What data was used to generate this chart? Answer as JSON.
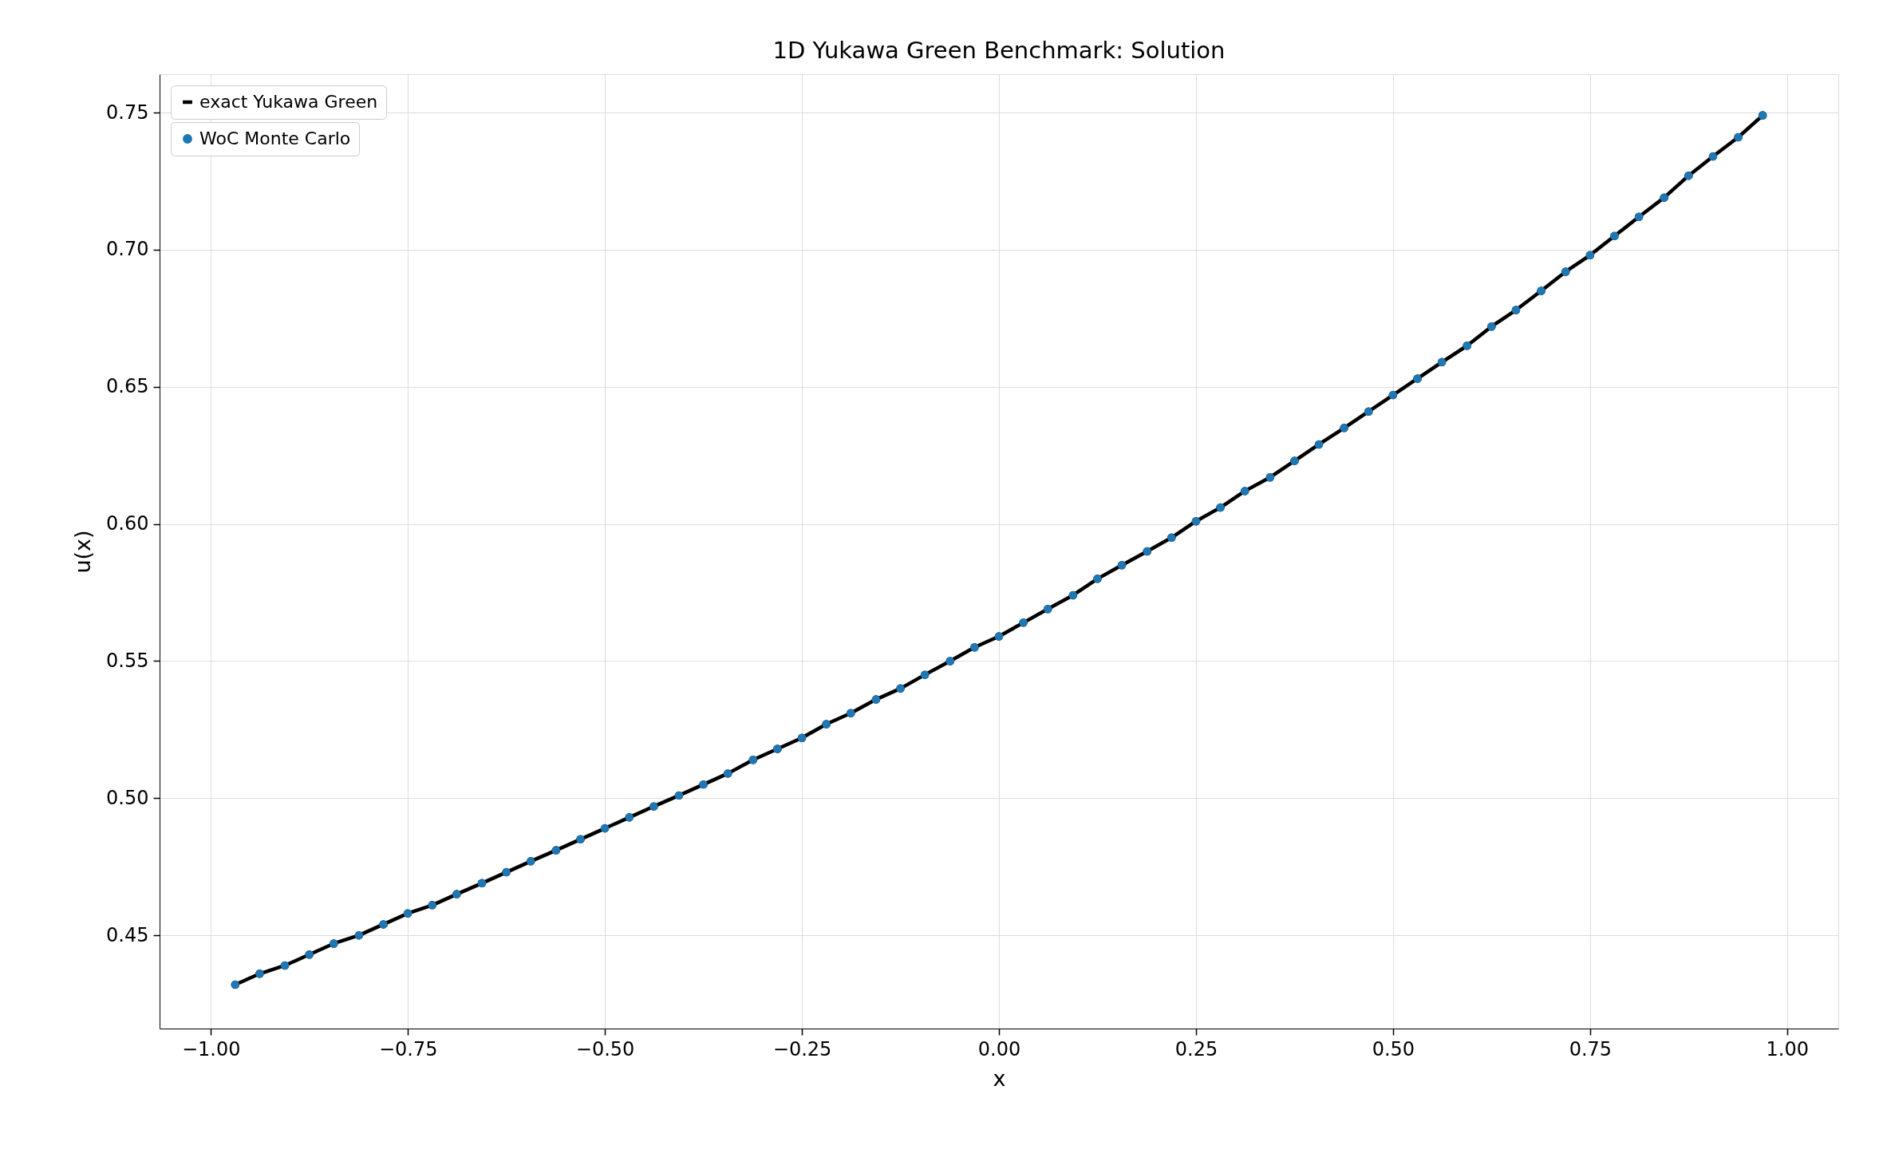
{
  "chart_data": {
    "type": "line",
    "title": "1D Yukawa Green Benchmark: Solution",
    "xlabel": "x",
    "ylabel": "u(x)",
    "x": [
      -0.969,
      -0.938,
      -0.906,
      -0.875,
      -0.844,
      -0.812,
      -0.781,
      -0.75,
      -0.719,
      -0.688,
      -0.656,
      -0.625,
      -0.594,
      -0.562,
      -0.531,
      -0.5,
      -0.469,
      -0.438,
      -0.406,
      -0.375,
      -0.344,
      -0.312,
      -0.281,
      -0.25,
      -0.219,
      -0.188,
      -0.156,
      -0.125,
      -0.094,
      -0.062,
      -0.031,
      0,
      0.031,
      0.062,
      0.094,
      0.125,
      0.156,
      0.188,
      0.219,
      0.25,
      0.281,
      0.312,
      0.344,
      0.375,
      0.406,
      0.438,
      0.469,
      0.5,
      0.531,
      0.562,
      0.594,
      0.625,
      0.656,
      0.688,
      0.719,
      0.75,
      0.781,
      0.812,
      0.844,
      0.875,
      0.906,
      0.938,
      0.969
    ],
    "series": [
      {
        "name": "exact Yukawa Green",
        "color": "#000000",
        "values": [
          0.432,
          0.436,
          0.439,
          0.443,
          0.447,
          0.45,
          0.454,
          0.458,
          0.461,
          0.465,
          0.469,
          0.473,
          0.477,
          0.481,
          0.485,
          0.489,
          0.493,
          0.497,
          0.501,
          0.505,
          0.509,
          0.514,
          0.518,
          0.522,
          0.527,
          0.531,
          0.536,
          0.54,
          0.545,
          0.55,
          0.555,
          0.559,
          0.564,
          0.569,
          0.574,
          0.58,
          0.585,
          0.59,
          0.595,
          0.601,
          0.606,
          0.612,
          0.617,
          0.623,
          0.629,
          0.635,
          0.641,
          0.647,
          0.653,
          0.659,
          0.665,
          0.672,
          0.678,
          0.685,
          0.692,
          0.698,
          0.705,
          0.712,
          0.719,
          0.727,
          0.734,
          0.741,
          0.749
        ]
      },
      {
        "name": "WoC Monte Carlo",
        "type": "scatter",
        "color": "#1f77b4",
        "values": [
          0.432,
          0.436,
          0.439,
          0.443,
          0.447,
          0.45,
          0.454,
          0.458,
          0.461,
          0.465,
          0.469,
          0.473,
          0.477,
          0.481,
          0.485,
          0.489,
          0.493,
          0.497,
          0.501,
          0.505,
          0.509,
          0.514,
          0.518,
          0.522,
          0.527,
          0.531,
          0.536,
          0.54,
          0.545,
          0.55,
          0.555,
          0.559,
          0.564,
          0.569,
          0.574,
          0.58,
          0.585,
          0.59,
          0.595,
          0.601,
          0.606,
          0.612,
          0.617,
          0.623,
          0.629,
          0.635,
          0.641,
          0.647,
          0.653,
          0.659,
          0.665,
          0.672,
          0.678,
          0.685,
          0.692,
          0.698,
          0.705,
          0.712,
          0.719,
          0.727,
          0.734,
          0.741,
          0.749
        ]
      }
    ],
    "xlim": [
      -1.065,
      1.065
    ],
    "xticks": [
      {
        "value": -1,
        "label": "−1.00"
      },
      {
        "value": -0.75,
        "label": "−0.75"
      },
      {
        "value": -0.5,
        "label": "−0.50"
      },
      {
        "value": -0.25,
        "label": "−0.25"
      },
      {
        "value": 0,
        "label": "0.00"
      },
      {
        "value": 0.25,
        "label": "0.25"
      },
      {
        "value": 0.5,
        "label": "0.50"
      },
      {
        "value": 0.75,
        "label": "0.75"
      },
      {
        "value": 1,
        "label": "1.00"
      }
    ],
    "ylim": [
      0.416,
      0.764
    ],
    "yticks": [
      {
        "value": 0.45,
        "label": "0.45"
      },
      {
        "value": 0.5,
        "label": "0.50"
      },
      {
        "value": 0.55,
        "label": "0.55"
      },
      {
        "value": 0.6,
        "label": "0.60"
      },
      {
        "value": 0.65,
        "label": "0.65"
      },
      {
        "value": 0.7,
        "label": "0.70"
      },
      {
        "value": 0.75,
        "label": "0.75"
      }
    ],
    "grid": true,
    "legend": "top left",
    "marker": "circle"
  }
}
